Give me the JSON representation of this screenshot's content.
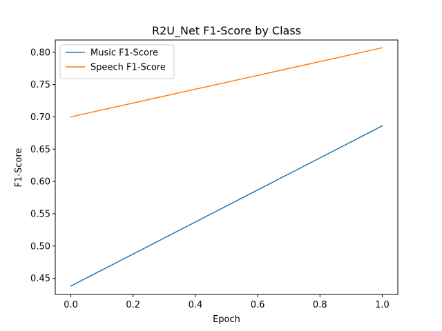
{
  "chart_data": {
    "type": "line",
    "title": "R2U_Net F1-Score by Class",
    "xlabel": "Epoch",
    "ylabel": "F1-Score",
    "xlim": [
      -0.05,
      1.05
    ],
    "ylim": [
      0.425,
      0.819
    ],
    "xticks": [
      0.0,
      0.2,
      0.4,
      0.6,
      0.8,
      1.0
    ],
    "xtick_labels": [
      "0.0",
      "0.2",
      "0.4",
      "0.6",
      "0.8",
      "1.0"
    ],
    "yticks": [
      0.45,
      0.5,
      0.55,
      0.6,
      0.65,
      0.7,
      0.75,
      0.8
    ],
    "ytick_labels": [
      "0.45",
      "0.50",
      "0.55",
      "0.60",
      "0.65",
      "0.70",
      "0.75",
      "0.80"
    ],
    "grid": false,
    "legend_position": "top-left",
    "x": [
      0,
      1
    ],
    "series": [
      {
        "name": "Music F1-Score",
        "values": [
          0.438,
          0.686
        ],
        "color": "#1f77b4"
      },
      {
        "name": "Speech F1-Score",
        "values": [
          0.7,
          0.807
        ],
        "color": "#ff7f0e"
      }
    ]
  }
}
